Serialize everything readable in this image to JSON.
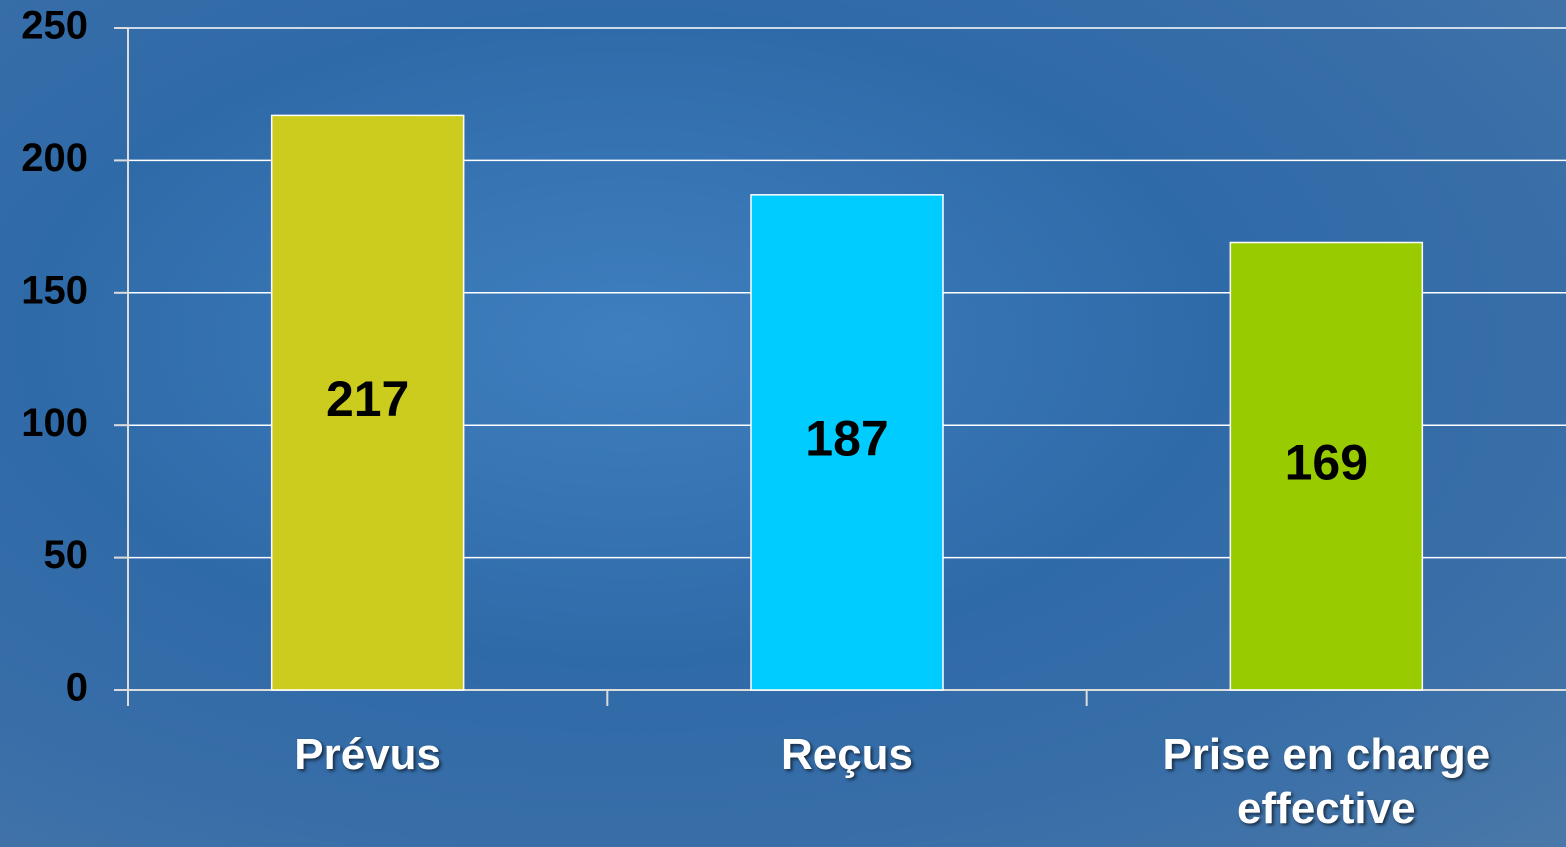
{
  "chart_data": {
    "type": "bar",
    "categories": [
      "Prévus",
      "Reçus",
      "Prise en charge effective"
    ],
    "values": [
      217,
      187,
      169
    ],
    "colors": [
      "#cccc1f",
      "#00ccff",
      "#99cc00"
    ],
    "ylim": [
      0,
      250
    ],
    "yticks": [
      0,
      50,
      100,
      150,
      200,
      250
    ],
    "grid": true
  }
}
